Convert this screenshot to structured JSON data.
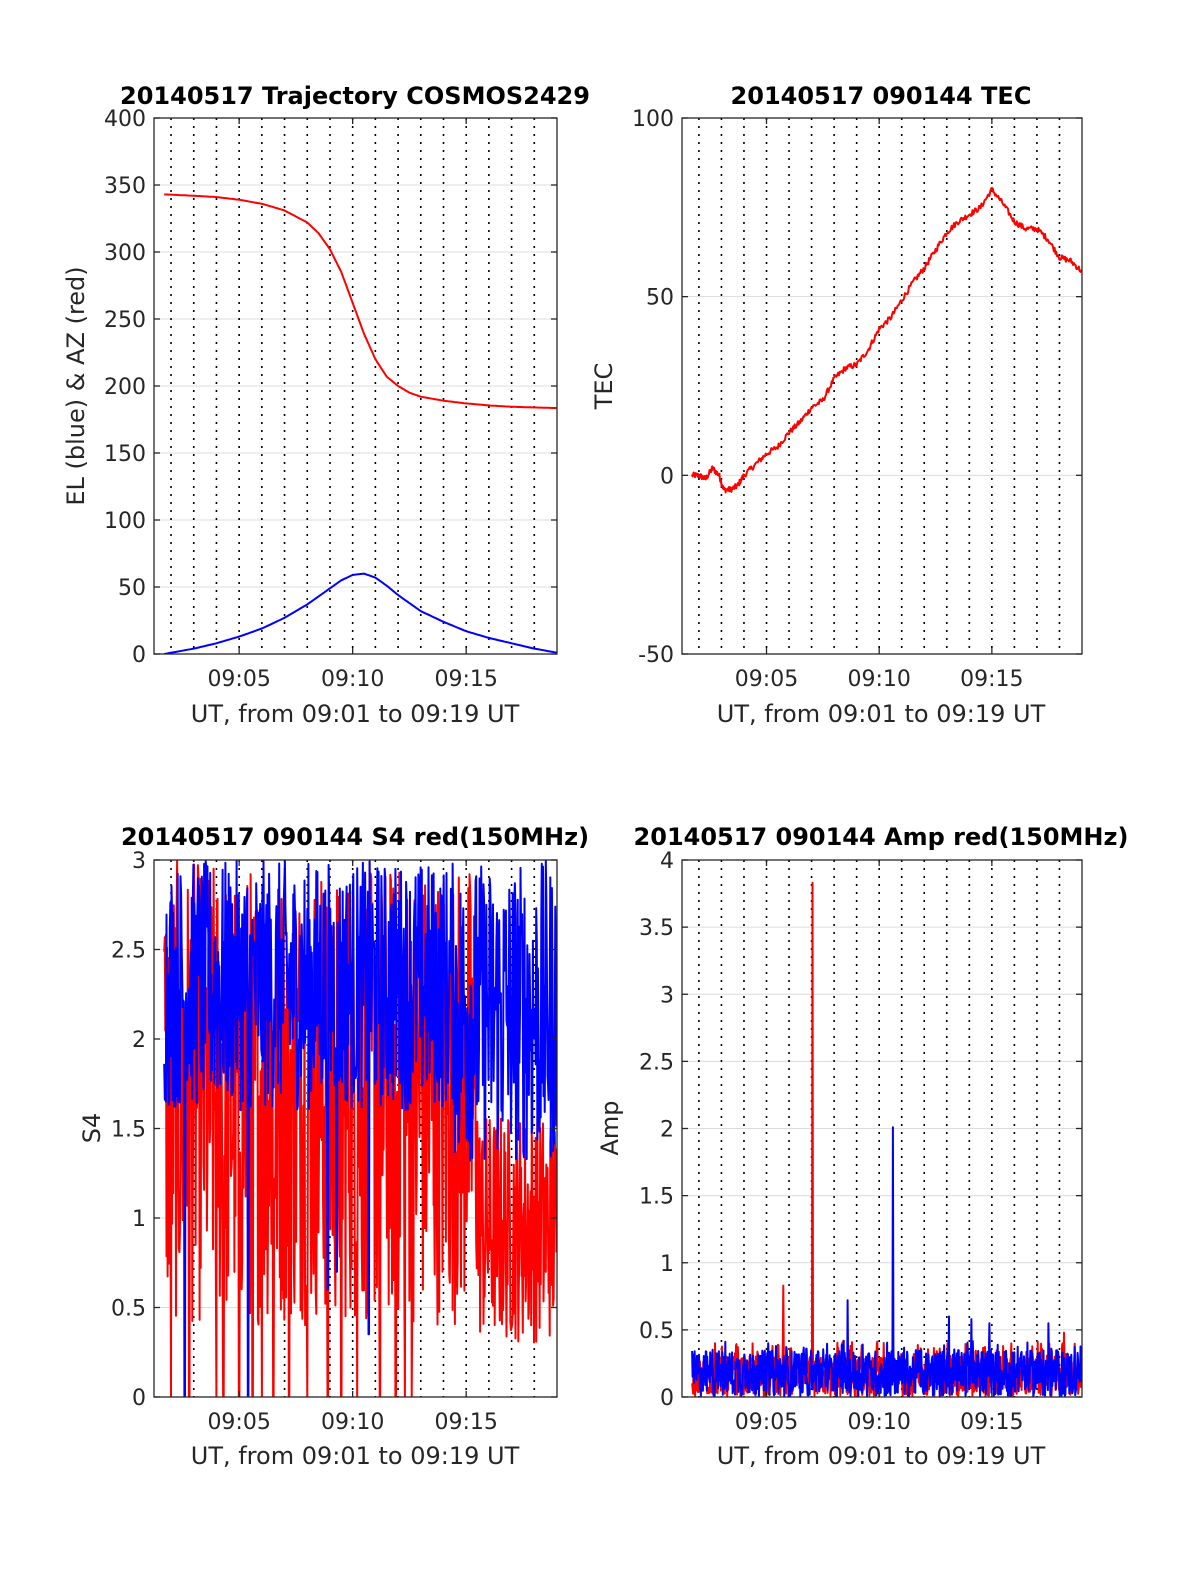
{
  "figure": {
    "background": "#ffffff"
  },
  "chart_data": [
    {
      "type": "line",
      "title": "20140517 Trajectory COSMOS2429",
      "xlabel": "UT, from 09:01 to 09:19 UT",
      "ylabel": "EL (blue) & AZ (red)",
      "x_unit": "minutes after 09:00 UT",
      "xlim": [
        1.25,
        19.0
      ],
      "ylim": [
        0,
        400
      ],
      "yticks": [
        0,
        50,
        100,
        150,
        200,
        250,
        300,
        350,
        400
      ],
      "ytick_labels": [
        "0",
        "50",
        "100",
        "150",
        "200",
        "250",
        "300",
        "350",
        "400"
      ],
      "xticks": [
        5,
        10,
        15
      ],
      "xtick_labels": [
        "09:05",
        "09:10",
        "09:15"
      ],
      "minor_gridlines_min": [
        2,
        3,
        4,
        5,
        6,
        7,
        8,
        9,
        10,
        11,
        12,
        13,
        14,
        15,
        16,
        17,
        18
      ],
      "grid": true,
      "series": [
        {
          "color": "#ff0000",
          "x": [
            1.7,
            3,
            4,
            5,
            6,
            7,
            8,
            8.5,
            9,
            9.5,
            10,
            10.5,
            11,
            11.5,
            12,
            12.5,
            13,
            14,
            15,
            16,
            17,
            18,
            19
          ],
          "y": [
            343,
            342,
            341,
            339,
            336,
            331,
            322,
            314,
            302,
            285,
            262,
            239,
            220,
            207,
            200,
            195,
            192,
            189,
            187,
            185.5,
            184.5,
            184,
            183.5
          ]
        },
        {
          "color": "#0000ff",
          "x": [
            1.7,
            3,
            4,
            5,
            6,
            7,
            8,
            8.5,
            9,
            9.5,
            10,
            10.5,
            11,
            11.5,
            12,
            12.5,
            13,
            14,
            15,
            16,
            17,
            18,
            19
          ],
          "y": [
            0,
            4,
            8,
            13,
            19,
            27,
            37,
            43,
            49,
            55,
            59,
            60,
            57,
            51,
            44,
            38,
            32,
            24,
            17,
            12,
            8,
            4,
            1
          ]
        }
      ]
    },
    {
      "type": "line",
      "title": "20140517 090144 TEC",
      "xlabel": "UT, from 09:01 to 09:19 UT",
      "ylabel": "TEC",
      "x_unit": "minutes after 09:00 UT",
      "xlim": [
        1.25,
        19.0
      ],
      "ylim": [
        -50,
        100
      ],
      "yticks": [
        -50,
        0,
        50,
        100
      ],
      "ytick_labels": [
        "-50",
        "0",
        "50",
        "100"
      ],
      "xticks": [
        5,
        10,
        15
      ],
      "xtick_labels": [
        "09:05",
        "09:10",
        "09:15"
      ],
      "minor_gridlines_min": [
        2,
        3,
        4,
        5,
        6,
        7,
        8,
        9,
        10,
        11,
        12,
        13,
        14,
        15,
        16,
        17,
        18
      ],
      "grid": true,
      "series": [
        {
          "color": "#ff0000",
          "x": [
            1.7,
            2.0,
            2.3,
            2.6,
            2.9,
            3.1,
            3.4,
            3.7,
            4.0,
            4.5,
            5.0,
            5.5,
            6.0,
            6.5,
            7.0,
            7.5,
            8.0,
            8.5,
            9.0,
            9.5,
            10.0,
            10.5,
            11.0,
            11.5,
            12.0,
            12.5,
            13.0,
            13.5,
            14.0,
            14.5,
            15.0,
            15.5,
            16.0,
            16.5,
            17.0,
            17.5,
            18.0,
            18.5,
            19.0
          ],
          "y": [
            0,
            0,
            -1,
            2,
            0,
            -4,
            -4,
            -3,
            0,
            3,
            6,
            8,
            12,
            15,
            19,
            21,
            27,
            30,
            31,
            35,
            41,
            44,
            49,
            54,
            58,
            63,
            68,
            71,
            73,
            75,
            80,
            76,
            71,
            69,
            69,
            66,
            61,
            60,
            57
          ]
        }
      ]
    },
    {
      "type": "line",
      "title": "20140517 090144 S4 red(150MHz)",
      "xlabel": "UT, from 09:01 to 09:19 UT",
      "ylabel": "S4",
      "x_unit": "minutes after 09:00 UT",
      "xlim": [
        1.25,
        19.0
      ],
      "ylim": [
        0,
        3
      ],
      "yticks": [
        0,
        0.5,
        1,
        1.5,
        2,
        2.5,
        3
      ],
      "ytick_labels": [
        "0",
        "0.5",
        "1",
        "1.5",
        "2",
        "2.5",
        "3"
      ],
      "xticks": [
        5,
        10,
        15
      ],
      "xtick_labels": [
        "09:05",
        "09:10",
        "09:15"
      ],
      "minor_gridlines_min": [
        2,
        3,
        4,
        5,
        6,
        7,
        8,
        9,
        10,
        11,
        12,
        13,
        14,
        15,
        16,
        17,
        18
      ],
      "grid": true,
      "noisy": true,
      "series": [
        {
          "color": "#ff0000",
          "x_range": [
            1.7,
            19.0
          ],
          "value_range": [
            0,
            3
          ],
          "level_before_15_5": [
            0.4,
            3.0
          ],
          "level_after_15_5": [
            0.3,
            1.6
          ],
          "drops_to_zero_at": [
            2.0,
            2.8,
            4.0,
            4.3,
            5.0,
            5.6,
            6.0,
            6.5,
            7.2,
            8.0,
            8.9,
            9.5,
            10.2,
            11.2,
            11.9,
            12.3,
            12.6
          ]
        },
        {
          "color": "#0000ff",
          "x_range": [
            1.7,
            19.0
          ],
          "value_range": [
            1.3,
            3.0
          ],
          "dips_at": [
            2.6,
            5.4,
            8.9,
            9.3,
            10.7
          ],
          "dip_values": [
            0,
            0,
            0.6,
            0.7,
            0.35
          ]
        }
      ]
    },
    {
      "type": "line",
      "title": "20140517 090144 Amp red(150MHz)",
      "xlabel": "UT, from 09:01 to 09:19 UT",
      "ylabel": "Amp",
      "x_unit": "minutes after 09:00 UT",
      "xlim": [
        1.25,
        19.0
      ],
      "ylim": [
        0,
        4
      ],
      "yticks": [
        0,
        0.5,
        1,
        1.5,
        2,
        2.5,
        3,
        3.5,
        4
      ],
      "ytick_labels": [
        "0",
        "0.5",
        "1",
        "1.5",
        "2",
        "2.5",
        "3",
        "3.5",
        "4"
      ],
      "xticks": [
        5,
        10,
        15
      ],
      "xtick_labels": [
        "09:05",
        "09:10",
        "09:15"
      ],
      "minor_gridlines_min": [
        2,
        3,
        4,
        5,
        6,
        7,
        8,
        9,
        10,
        11,
        12,
        13,
        14,
        15,
        16,
        17,
        18
      ],
      "grid": true,
      "noisy": true,
      "series": [
        {
          "color": "#ff0000",
          "x_range": [
            1.7,
            19.0
          ],
          "baseline_range": [
            0,
            0.3
          ],
          "spikes": [
            {
              "x": 5.75,
              "y": 0.83
            },
            {
              "x": 7.05,
              "y": 3.83
            },
            {
              "x": 15.5,
              "y": 0.38
            },
            {
              "x": 18.2,
              "y": 0.48
            }
          ]
        },
        {
          "color": "#0000ff",
          "x_range": [
            1.7,
            19.0
          ],
          "baseline_range": [
            0,
            0.35
          ],
          "spikes": [
            {
              "x": 8.6,
              "y": 0.72
            },
            {
              "x": 10.6,
              "y": 2.01
            },
            {
              "x": 13.1,
              "y": 0.6
            },
            {
              "x": 14.1,
              "y": 0.58
            },
            {
              "x": 14.9,
              "y": 0.55
            },
            {
              "x": 17.5,
              "y": 0.55
            }
          ]
        }
      ]
    }
  ]
}
